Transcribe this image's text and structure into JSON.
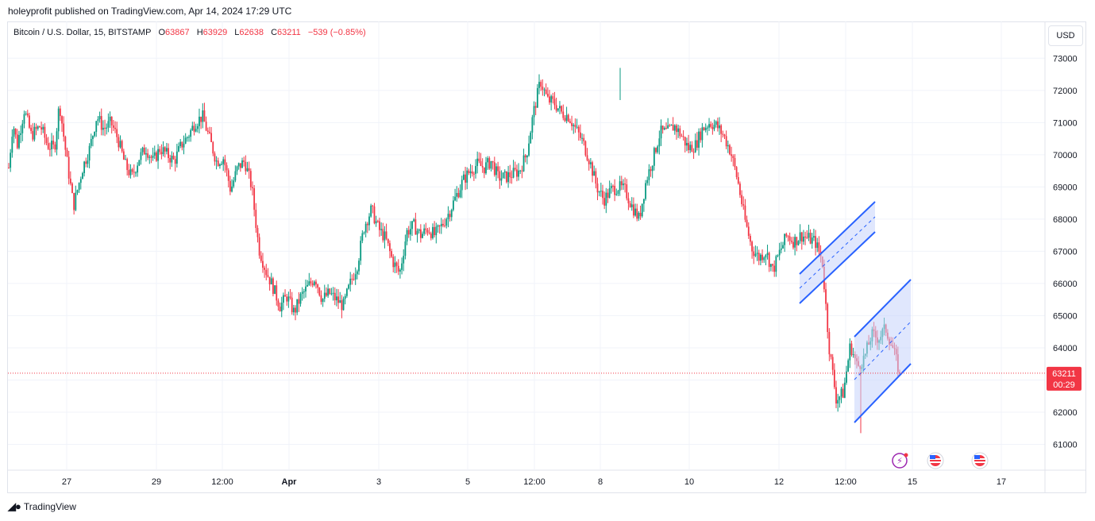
{
  "header": {
    "published": "holeyprofit published on TradingView.com, Apr 14, 2024 17:29 UTC"
  },
  "legend": {
    "symbol": "Bitcoin / U.S. Dollar, 15, BITSTAMP",
    "o_label": "O",
    "o_value": "63867",
    "h_label": "H",
    "h_value": "63929",
    "l_label": "L",
    "l_value": "62638",
    "c_label": "C",
    "c_value": "63211",
    "change": "−539 (−0.85%)"
  },
  "currency_button": "USD",
  "price_tag": {
    "price": "63211",
    "countdown": "00:29"
  },
  "footer": {
    "brand": "TradingView"
  },
  "colors": {
    "up": "#089981",
    "down": "#f23645",
    "channel": "#2962ff",
    "channel_fill": "#c7d4fb",
    "last_price_line": "#f23645"
  },
  "chart_data": {
    "type": "candlestick",
    "symbol": "BTCUSD",
    "timeframe": "15",
    "exchange": "BITSTAMP",
    "ylim": [
      60200,
      73600
    ],
    "y_ticks": [
      "73000",
      "72000",
      "71000",
      "70000",
      "69000",
      "68000",
      "67000",
      "66000",
      "65000",
      "64000",
      "63000",
      "62000",
      "61000"
    ],
    "x_ticks": [
      "27",
      "29",
      "12:00",
      "Apr",
      "3",
      "5",
      "12:00",
      "8",
      "10",
      "12",
      "12:00",
      "15",
      "17"
    ],
    "last_price": 63211,
    "price_path": [
      [
        0,
        69600
      ],
      [
        0.6,
        71000
      ],
      [
        1.2,
        70300
      ],
      [
        2.2,
        71400
      ],
      [
        3.2,
        70600
      ],
      [
        4.5,
        70900
      ],
      [
        5.5,
        70300
      ],
      [
        6.5,
        70200
      ],
      [
        7.2,
        71600
      ],
      [
        8.2,
        69900
      ],
      [
        9.2,
        68400
      ],
      [
        10.5,
        69600
      ],
      [
        11.5,
        70200
      ],
      [
        12.5,
        71200
      ],
      [
        13.5,
        70800
      ],
      [
        14.5,
        71000
      ],
      [
        15.5,
        70500
      ],
      [
        16.5,
        69700
      ],
      [
        17.5,
        69300
      ],
      [
        18.5,
        69900
      ],
      [
        19.5,
        70200
      ],
      [
        20.5,
        69800
      ],
      [
        21.5,
        70200
      ],
      [
        22.5,
        70000
      ],
      [
        23.5,
        69800
      ],
      [
        24.5,
        70300
      ],
      [
        25.5,
        70600
      ],
      [
        26.5,
        71000
      ],
      [
        27.5,
        71200
      ],
      [
        28.5,
        70500
      ],
      [
        29.5,
        69800
      ],
      [
        30.5,
        69900
      ],
      [
        31.5,
        68900
      ],
      [
        32.5,
        69600
      ],
      [
        33.5,
        69800
      ],
      [
        34.5,
        69000
      ],
      [
        35.5,
        67100
      ],
      [
        36.5,
        66400
      ],
      [
        37.5,
        65900
      ],
      [
        38.5,
        65300
      ],
      [
        39.5,
        65600
      ],
      [
        40.5,
        65100
      ],
      [
        41.5,
        65600
      ],
      [
        42.5,
        65900
      ],
      [
        43.5,
        66200
      ],
      [
        44.5,
        65500
      ],
      [
        45.5,
        65700
      ],
      [
        46.5,
        65500
      ],
      [
        47.5,
        65300
      ],
      [
        48.5,
        66000
      ],
      [
        49.5,
        66600
      ],
      [
        50.5,
        67800
      ],
      [
        51.5,
        68300
      ],
      [
        52.5,
        67700
      ],
      [
        53.5,
        67400
      ],
      [
        54.5,
        66700
      ],
      [
        55.5,
        66300
      ],
      [
        56.5,
        67600
      ],
      [
        57.5,
        67800
      ],
      [
        58.5,
        67500
      ],
      [
        59.5,
        67700
      ],
      [
        60.5,
        67500
      ],
      [
        61.5,
        67800
      ],
      [
        62.5,
        68200
      ],
      [
        63.5,
        68700
      ],
      [
        64.5,
        69200
      ],
      [
        65.5,
        69500
      ],
      [
        66.5,
        69700
      ],
      [
        67.5,
        69600
      ],
      [
        68.5,
        69800
      ],
      [
        69.5,
        69300
      ],
      [
        70.5,
        69300
      ],
      [
        71.5,
        69400
      ],
      [
        72.5,
        69500
      ],
      [
        73.5,
        70000
      ],
      [
        74.5,
        71300
      ],
      [
        75.5,
        72300
      ],
      [
        76.5,
        71700
      ],
      [
        77.5,
        71600
      ],
      [
        78.5,
        71300
      ],
      [
        79.5,
        71200
      ],
      [
        80.5,
        70800
      ],
      [
        81.5,
        70400
      ],
      [
        82.5,
        69800
      ],
      [
        83.5,
        69000
      ],
      [
        84.5,
        68600
      ],
      [
        85.5,
        68900
      ],
      [
        86.5,
        69000
      ],
      [
        87.5,
        68900
      ],
      [
        88.5,
        68400
      ],
      [
        89.5,
        68000
      ],
      [
        90.5,
        69200
      ],
      [
        91.5,
        69900
      ],
      [
        92.5,
        70700
      ],
      [
        93.5,
        70700
      ],
      [
        94.5,
        70900
      ],
      [
        95.5,
        70600
      ],
      [
        96.5,
        70200
      ],
      [
        97.5,
        70300
      ],
      [
        98.5,
        70800
      ],
      [
        99.5,
        71000
      ],
      [
        100.5,
        70900
      ],
      [
        101.5,
        70600
      ],
      [
        102.5,
        70100
      ],
      [
        103.5,
        69200
      ],
      [
        104.5,
        68000
      ],
      [
        105.5,
        67100
      ],
      [
        106.5,
        66800
      ],
      [
        107.5,
        67000
      ],
      [
        108.5,
        66400
      ],
      [
        109.5,
        67000
      ],
      [
        110.5,
        67500
      ],
      [
        111.5,
        67300
      ],
      [
        112.5,
        67500
      ],
      [
        113.5,
        67400
      ],
      [
        114.5,
        67300
      ],
      [
        115.5,
        66700
      ],
      [
        116.5,
        64000
      ],
      [
        117.5,
        62400
      ],
      [
        118.5,
        62600
      ],
      [
        119.5,
        64100
      ],
      [
        120.5,
        63400
      ],
      [
        121.5,
        63700
      ],
      [
        122.5,
        64400
      ],
      [
        123.5,
        64300
      ],
      [
        124.5,
        64600
      ],
      [
        125.5,
        64000
      ],
      [
        126.5,
        63211
      ]
    ],
    "highest_high": 72700,
    "lowest_low": 61350,
    "annotations": [
      {
        "type": "parallel_channel",
        "color": "#2962ff"
      },
      {
        "type": "parallel_channel",
        "color": "#2962ff"
      },
      {
        "type": "event_icons",
        "items": [
          "dividends-flash-icon",
          "us-economic-event-icon",
          "us-economic-event-icon"
        ]
      }
    ]
  }
}
